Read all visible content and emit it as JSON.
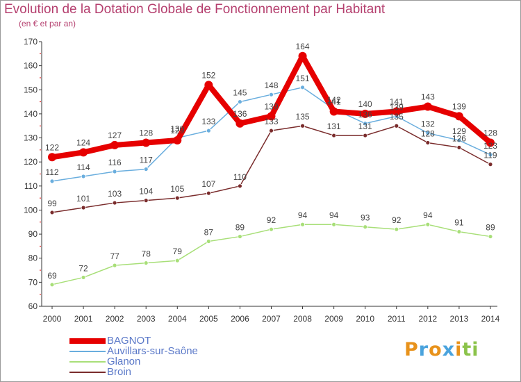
{
  "title": "Evolution de la Dotation Globale de Fonctionnement par Habitant",
  "subtitle": "(en € et par an)",
  "logo": {
    "letters": [
      "P",
      "r",
      "o",
      "x",
      "i",
      "t",
      "i"
    ],
    "colors": [
      "#e8921b",
      "#4aa3dd",
      "#e8921b",
      "#4aa3dd",
      "#e8921b",
      "#8bc34a",
      "#8bc34a"
    ]
  },
  "chart_data": {
    "type": "line",
    "x": [
      "2000",
      "2001",
      "2002",
      "2003",
      "2004",
      "2005",
      "2006",
      "2007",
      "2008",
      "2009",
      "2010",
      "2011",
      "2012",
      "2013",
      "2014"
    ],
    "ylim": [
      60,
      170
    ],
    "yticks": [
      60,
      70,
      80,
      90,
      100,
      110,
      120,
      130,
      140,
      150,
      160,
      170
    ],
    "grid": false,
    "legend_position": "bottom-left",
    "series": [
      {
        "name": "BAGNOT",
        "color": "#e60000",
        "values": [
          122,
          124,
          127,
          128,
          129,
          152,
          136,
          139,
          164,
          141,
          140,
          141,
          143,
          139,
          128
        ]
      },
      {
        "name": "Auvillars-sur-Saône",
        "color": "#6aaede",
        "values": [
          112,
          114,
          116,
          117,
          130,
          133,
          145,
          148,
          151,
          142,
          136,
          139,
          132,
          129,
          123
        ]
      },
      {
        "name": "Glanon",
        "color": "#a8df78",
        "values": [
          69,
          72,
          77,
          78,
          79,
          87,
          89,
          92,
          94,
          94,
          93,
          92,
          94,
          91,
          89
        ]
      },
      {
        "name": "Broin",
        "color": "#7a2c2c",
        "values": [
          99,
          101,
          103,
          104,
          105,
          107,
          110,
          133,
          135,
          131,
          131,
          135,
          128,
          126,
          119
        ]
      }
    ]
  }
}
